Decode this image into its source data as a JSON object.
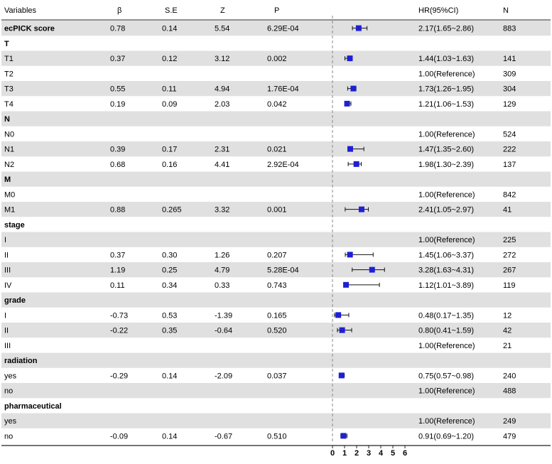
{
  "table": {
    "headers": {
      "variables": "Variables",
      "beta": "β",
      "se": "S.E",
      "z": "Z",
      "p": "P",
      "hr": "HR(95%CI)",
      "n": "N"
    }
  },
  "chart_data": {
    "type": "forest",
    "reference_line": 1,
    "x_ticks": [
      0,
      1,
      2,
      3,
      4,
      5,
      6
    ],
    "xlim": [
      0,
      6
    ],
    "marker_color": "#1f1fd6",
    "stripe_color": "#e0e0e0",
    "rows": [
      {
        "label": "ecPICK score",
        "bold": true,
        "beta": "0.78",
        "se": "0.14",
        "z": "5.54",
        "p": "6.29E-04",
        "hr": 2.17,
        "lo": 1.65,
        "hi": 2.86,
        "hr_text": "2.17(1.65~2.86)",
        "n": "883"
      },
      {
        "label": "T",
        "section": true
      },
      {
        "label": "T1",
        "beta": "0.37",
        "se": "0.12",
        "z": "3.12",
        "p": "0.002",
        "hr": 1.44,
        "lo": 1.03,
        "hi": 1.63,
        "hr_text": "1.44(1.03~1.63)",
        "n": "141"
      },
      {
        "label": "T2",
        "hr_text": "1.00(Reference)",
        "n": "309"
      },
      {
        "label": "T3",
        "beta": "0.55",
        "se": "0.11",
        "z": "4.94",
        "p": "1.76E-04",
        "hr": 1.73,
        "lo": 1.26,
        "hi": 1.95,
        "hr_text": "1.73(1.26~1.95)",
        "n": "304"
      },
      {
        "label": "T4",
        "beta": "0.19",
        "se": "0.09",
        "z": "2.03",
        "p": "0.042",
        "hr": 1.21,
        "lo": 1.06,
        "hi": 1.53,
        "hr_text": "1.21(1.06~1.53)",
        "n": "129"
      },
      {
        "label": "N",
        "section": true
      },
      {
        "label": "N0",
        "hr_text": "1.00(Reference)",
        "n": "524"
      },
      {
        "label": "N1",
        "beta": "0.39",
        "se": "0.17",
        "z": "2.31",
        "p": "0.021",
        "hr": 1.47,
        "lo": 1.35,
        "hi": 2.6,
        "hr_text": "1.47(1.35~2.60)",
        "n": "222"
      },
      {
        "label": "N2",
        "beta": "0.68",
        "se": "0.16",
        "z": "4.41",
        "p": "2.92E-04",
        "hr": 1.98,
        "lo": 1.3,
        "hi": 2.39,
        "hr_text": "1.98(1.30~2.39)",
        "n": "137"
      },
      {
        "label": "M",
        "section": true
      },
      {
        "label": "M0",
        "hr_text": "1.00(Reference)",
        "n": "842"
      },
      {
        "label": "M1",
        "beta": "0.88",
        "se": "0.265",
        "z": "3.32",
        "p": "0.001",
        "hr": 2.41,
        "lo": 1.05,
        "hi": 2.97,
        "hr_text": "2.41(1.05~2.97)",
        "n": "41"
      },
      {
        "label": "stage",
        "section": true
      },
      {
        "label": "I",
        "hr_text": "1.00(Reference)",
        "n": "225"
      },
      {
        "label": "II",
        "beta": "0.37",
        "se": "0.30",
        "z": "1.26",
        "p": "0.207",
        "hr": 1.45,
        "lo": 1.06,
        "hi": 3.37,
        "hr_text": "1.45(1.06~3.37)",
        "n": "272"
      },
      {
        "label": "III",
        "beta": "1.19",
        "se": "0.25",
        "z": "4.79",
        "p": "5.28E-04",
        "hr": 3.28,
        "lo": 1.63,
        "hi": 4.31,
        "hr_text": "3.28(1.63~4.31)",
        "n": "267"
      },
      {
        "label": "IV",
        "beta": "0.11",
        "se": "0.34",
        "z": "0.33",
        "p": "0.743",
        "hr": 1.12,
        "lo": 1.01,
        "hi": 3.89,
        "hr_text": "1.12(1.01~3.89)",
        "n": "119"
      },
      {
        "label": "grade",
        "section": true
      },
      {
        "label": "I",
        "beta": "-0.73",
        "se": "0.53",
        "z": "-1.39",
        "p": "0.165",
        "hr": 0.48,
        "lo": 0.17,
        "hi": 1.35,
        "hr_text": "0.48(0.17~1.35)",
        "n": "12"
      },
      {
        "label": "II",
        "beta": "-0.22",
        "se": "0.35",
        "z": "-0.64",
        "p": "0.520",
        "hr": 0.8,
        "lo": 0.41,
        "hi": 1.59,
        "hr_text": "0.80(0.41~1.59)",
        "n": "42"
      },
      {
        "label": "III",
        "hr_text": "1.00(Reference)",
        "n": "21"
      },
      {
        "label": "radiation",
        "section": true
      },
      {
        "label": "yes",
        "beta": "-0.29",
        "se": "0.14",
        "z": "-2.09",
        "p": "0.037",
        "hr": 0.75,
        "lo": 0.57,
        "hi": 0.98,
        "hr_text": "0.75(0.57~0.98)",
        "n": "240"
      },
      {
        "label": "no",
        "hr_text": "1.00(Reference)",
        "n": "488"
      },
      {
        "label": "pharmaceutical",
        "section": true
      },
      {
        "label": "yes",
        "hr_text": "1.00(Reference)",
        "n": "249"
      },
      {
        "label": "no",
        "beta": "-0.09",
        "se": "0.14",
        "z": "-0.67",
        "p": "0.510",
        "hr": 0.91,
        "lo": 0.69,
        "hi": 1.2,
        "hr_text": "0.91(0.69~1.20)",
        "n": "479"
      }
    ]
  }
}
